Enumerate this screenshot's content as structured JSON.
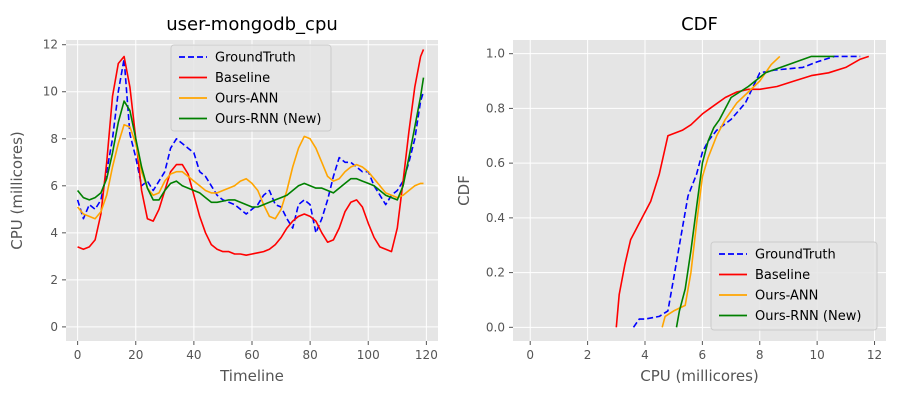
{
  "chart_data": [
    {
      "type": "line",
      "title": "user-mongodb_cpu",
      "xlabel": "Timeline",
      "ylabel": "CPU (millicores)",
      "xlim": [
        -4,
        124
      ],
      "ylim": [
        -0.6,
        12.2
      ],
      "xticks": [
        0,
        20,
        40,
        60,
        80,
        100,
        120
      ],
      "yticks": [
        0,
        2,
        4,
        6,
        8,
        10,
        12
      ],
      "grid": true,
      "legend_position": "upper-center",
      "x": [
        0,
        2,
        4,
        6,
        8,
        10,
        12,
        14,
        16,
        18,
        20,
        22,
        24,
        26,
        28,
        30,
        32,
        34,
        36,
        38,
        40,
        42,
        44,
        46,
        48,
        50,
        52,
        54,
        56,
        58,
        60,
        62,
        64,
        66,
        68,
        70,
        72,
        74,
        76,
        78,
        80,
        82,
        84,
        86,
        88,
        90,
        92,
        94,
        96,
        98,
        100,
        102,
        104,
        106,
        108,
        110,
        112,
        114,
        116,
        118,
        119
      ],
      "series": [
        {
          "name": "GroundTruth",
          "color": "#0000ff",
          "dash": "dashed",
          "values": [
            5.4,
            4.6,
            5.2,
            5.0,
            5.4,
            6.6,
            8.0,
            10.0,
            11.4,
            8.2,
            7.2,
            6.0,
            6.2,
            5.8,
            6.2,
            6.6,
            7.6,
            8.0,
            7.8,
            7.6,
            7.4,
            6.6,
            6.4,
            6.0,
            5.6,
            5.4,
            5.3,
            5.2,
            5.0,
            4.8,
            5.0,
            5.2,
            5.6,
            5.8,
            5.2,
            5.1,
            4.6,
            4.2,
            5.2,
            5.4,
            5.2,
            4.0,
            4.6,
            5.4,
            6.4,
            7.2,
            7.0,
            7.0,
            6.8,
            6.6,
            6.6,
            6.0,
            5.6,
            5.2,
            5.6,
            5.8,
            6.2,
            7.0,
            8.0,
            9.6,
            10.0
          ]
        },
        {
          "name": "Baseline",
          "color": "#ff0000",
          "dash": "solid",
          "values": [
            3.4,
            3.3,
            3.4,
            3.7,
            4.8,
            7.0,
            9.8,
            11.2,
            11.5,
            10.2,
            8.0,
            5.8,
            4.6,
            4.5,
            5.0,
            5.8,
            6.6,
            6.9,
            6.9,
            6.5,
            5.6,
            4.7,
            4.0,
            3.5,
            3.3,
            3.2,
            3.2,
            3.1,
            3.1,
            3.05,
            3.1,
            3.15,
            3.2,
            3.3,
            3.5,
            3.8,
            4.2,
            4.5,
            4.7,
            4.8,
            4.7,
            4.5,
            4.0,
            3.6,
            3.7,
            4.2,
            4.9,
            5.3,
            5.4,
            5.1,
            4.4,
            3.8,
            3.4,
            3.3,
            3.2,
            4.2,
            6.2,
            8.3,
            10.2,
            11.5,
            11.8
          ]
        },
        {
          "name": "Ours-ANN",
          "color": "#ffa500",
          "dash": "solid",
          "values": [
            5.1,
            4.8,
            4.7,
            4.6,
            4.9,
            5.6,
            6.8,
            7.8,
            8.6,
            8.5,
            7.8,
            6.6,
            5.9,
            5.6,
            5.7,
            6.2,
            6.5,
            6.6,
            6.6,
            6.4,
            6.2,
            6.0,
            5.8,
            5.7,
            5.7,
            5.8,
            5.9,
            6.0,
            6.2,
            6.3,
            6.1,
            5.8,
            5.2,
            4.7,
            4.6,
            5.0,
            5.8,
            6.8,
            7.6,
            8.1,
            8.0,
            7.6,
            7.0,
            6.4,
            6.2,
            6.3,
            6.6,
            6.8,
            6.9,
            6.8,
            6.6,
            6.3,
            6.0,
            5.7,
            5.6,
            5.5,
            5.6,
            5.8,
            6.0,
            6.1,
            6.1
          ]
        },
        {
          "name": "Ours-RNN (New)",
          "color": "#008000",
          "dash": "solid",
          "values": [
            5.8,
            5.5,
            5.4,
            5.5,
            5.7,
            6.3,
            7.4,
            8.7,
            9.6,
            9.2,
            8.0,
            6.8,
            5.9,
            5.4,
            5.4,
            5.8,
            6.1,
            6.2,
            6.0,
            5.9,
            5.8,
            5.7,
            5.5,
            5.3,
            5.3,
            5.35,
            5.4,
            5.4,
            5.3,
            5.2,
            5.1,
            5.1,
            5.2,
            5.3,
            5.4,
            5.5,
            5.6,
            5.8,
            6.0,
            6.1,
            6.0,
            5.9,
            5.9,
            5.8,
            5.7,
            5.9,
            6.1,
            6.3,
            6.3,
            6.2,
            6.1,
            6.0,
            5.8,
            5.6,
            5.5,
            5.4,
            6.0,
            7.2,
            8.5,
            9.8,
            10.6
          ]
        }
      ]
    },
    {
      "type": "line",
      "title": "CDF",
      "xlabel": "CPU (millicores)",
      "ylabel": "CDF",
      "xlim": [
        -0.6,
        12.4
      ],
      "ylim": [
        -0.05,
        1.05
      ],
      "xticks": [
        0,
        2,
        4,
        6,
        8,
        10,
        12
      ],
      "yticks": [
        0.0,
        0.2,
        0.4,
        0.6,
        0.8,
        1.0
      ],
      "grid": true,
      "legend_position": "lower-right",
      "series": [
        {
          "name": "GroundTruth",
          "color": "#0000ff",
          "dash": "dashed",
          "x": [
            3.6,
            3.8,
            4.0,
            4.5,
            4.8,
            5.0,
            5.2,
            5.5,
            5.8,
            6.0,
            6.2,
            6.5,
            7.0,
            7.5,
            8.0,
            8.5,
            9.5,
            10.0,
            10.6,
            11.5
          ],
          "y": [
            0.0,
            0.03,
            0.03,
            0.04,
            0.06,
            0.18,
            0.3,
            0.48,
            0.56,
            0.64,
            0.68,
            0.72,
            0.76,
            0.82,
            0.93,
            0.94,
            0.95,
            0.97,
            0.99,
            0.99
          ]
        },
        {
          "name": "Baseline",
          "color": "#ff0000",
          "dash": "solid",
          "x": [
            3.0,
            3.1,
            3.3,
            3.5,
            3.8,
            4.2,
            4.5,
            4.8,
            5.3,
            5.6,
            6.0,
            6.4,
            6.8,
            7.2,
            7.6,
            8.0,
            8.6,
            9.2,
            9.8,
            10.4,
            11.0,
            11.5,
            11.8
          ],
          "y": [
            0.0,
            0.12,
            0.23,
            0.32,
            0.38,
            0.46,
            0.56,
            0.7,
            0.72,
            0.74,
            0.78,
            0.81,
            0.84,
            0.86,
            0.87,
            0.87,
            0.88,
            0.9,
            0.92,
            0.93,
            0.95,
            0.98,
            0.99
          ]
        },
        {
          "name": "Ours-ANN",
          "color": "#ffa500",
          "dash": "solid",
          "x": [
            4.6,
            4.7,
            5.0,
            5.4,
            5.6,
            5.8,
            6.0,
            6.2,
            6.5,
            6.8,
            7.2,
            7.6,
            8.0,
            8.4,
            8.7
          ],
          "y": [
            0.0,
            0.04,
            0.06,
            0.08,
            0.2,
            0.38,
            0.55,
            0.62,
            0.7,
            0.76,
            0.82,
            0.86,
            0.9,
            0.96,
            0.99
          ]
        },
        {
          "name": "Ours-RNN (New)",
          "color": "#008000",
          "dash": "solid",
          "x": [
            5.1,
            5.2,
            5.4,
            5.6,
            5.8,
            6.0,
            6.2,
            6.4,
            6.6,
            7.0,
            7.6,
            8.2,
            9.0,
            9.8,
            10.6
          ],
          "y": [
            0.0,
            0.06,
            0.14,
            0.28,
            0.44,
            0.6,
            0.68,
            0.73,
            0.76,
            0.84,
            0.88,
            0.93,
            0.96,
            0.99,
            0.99
          ]
        }
      ]
    }
  ]
}
